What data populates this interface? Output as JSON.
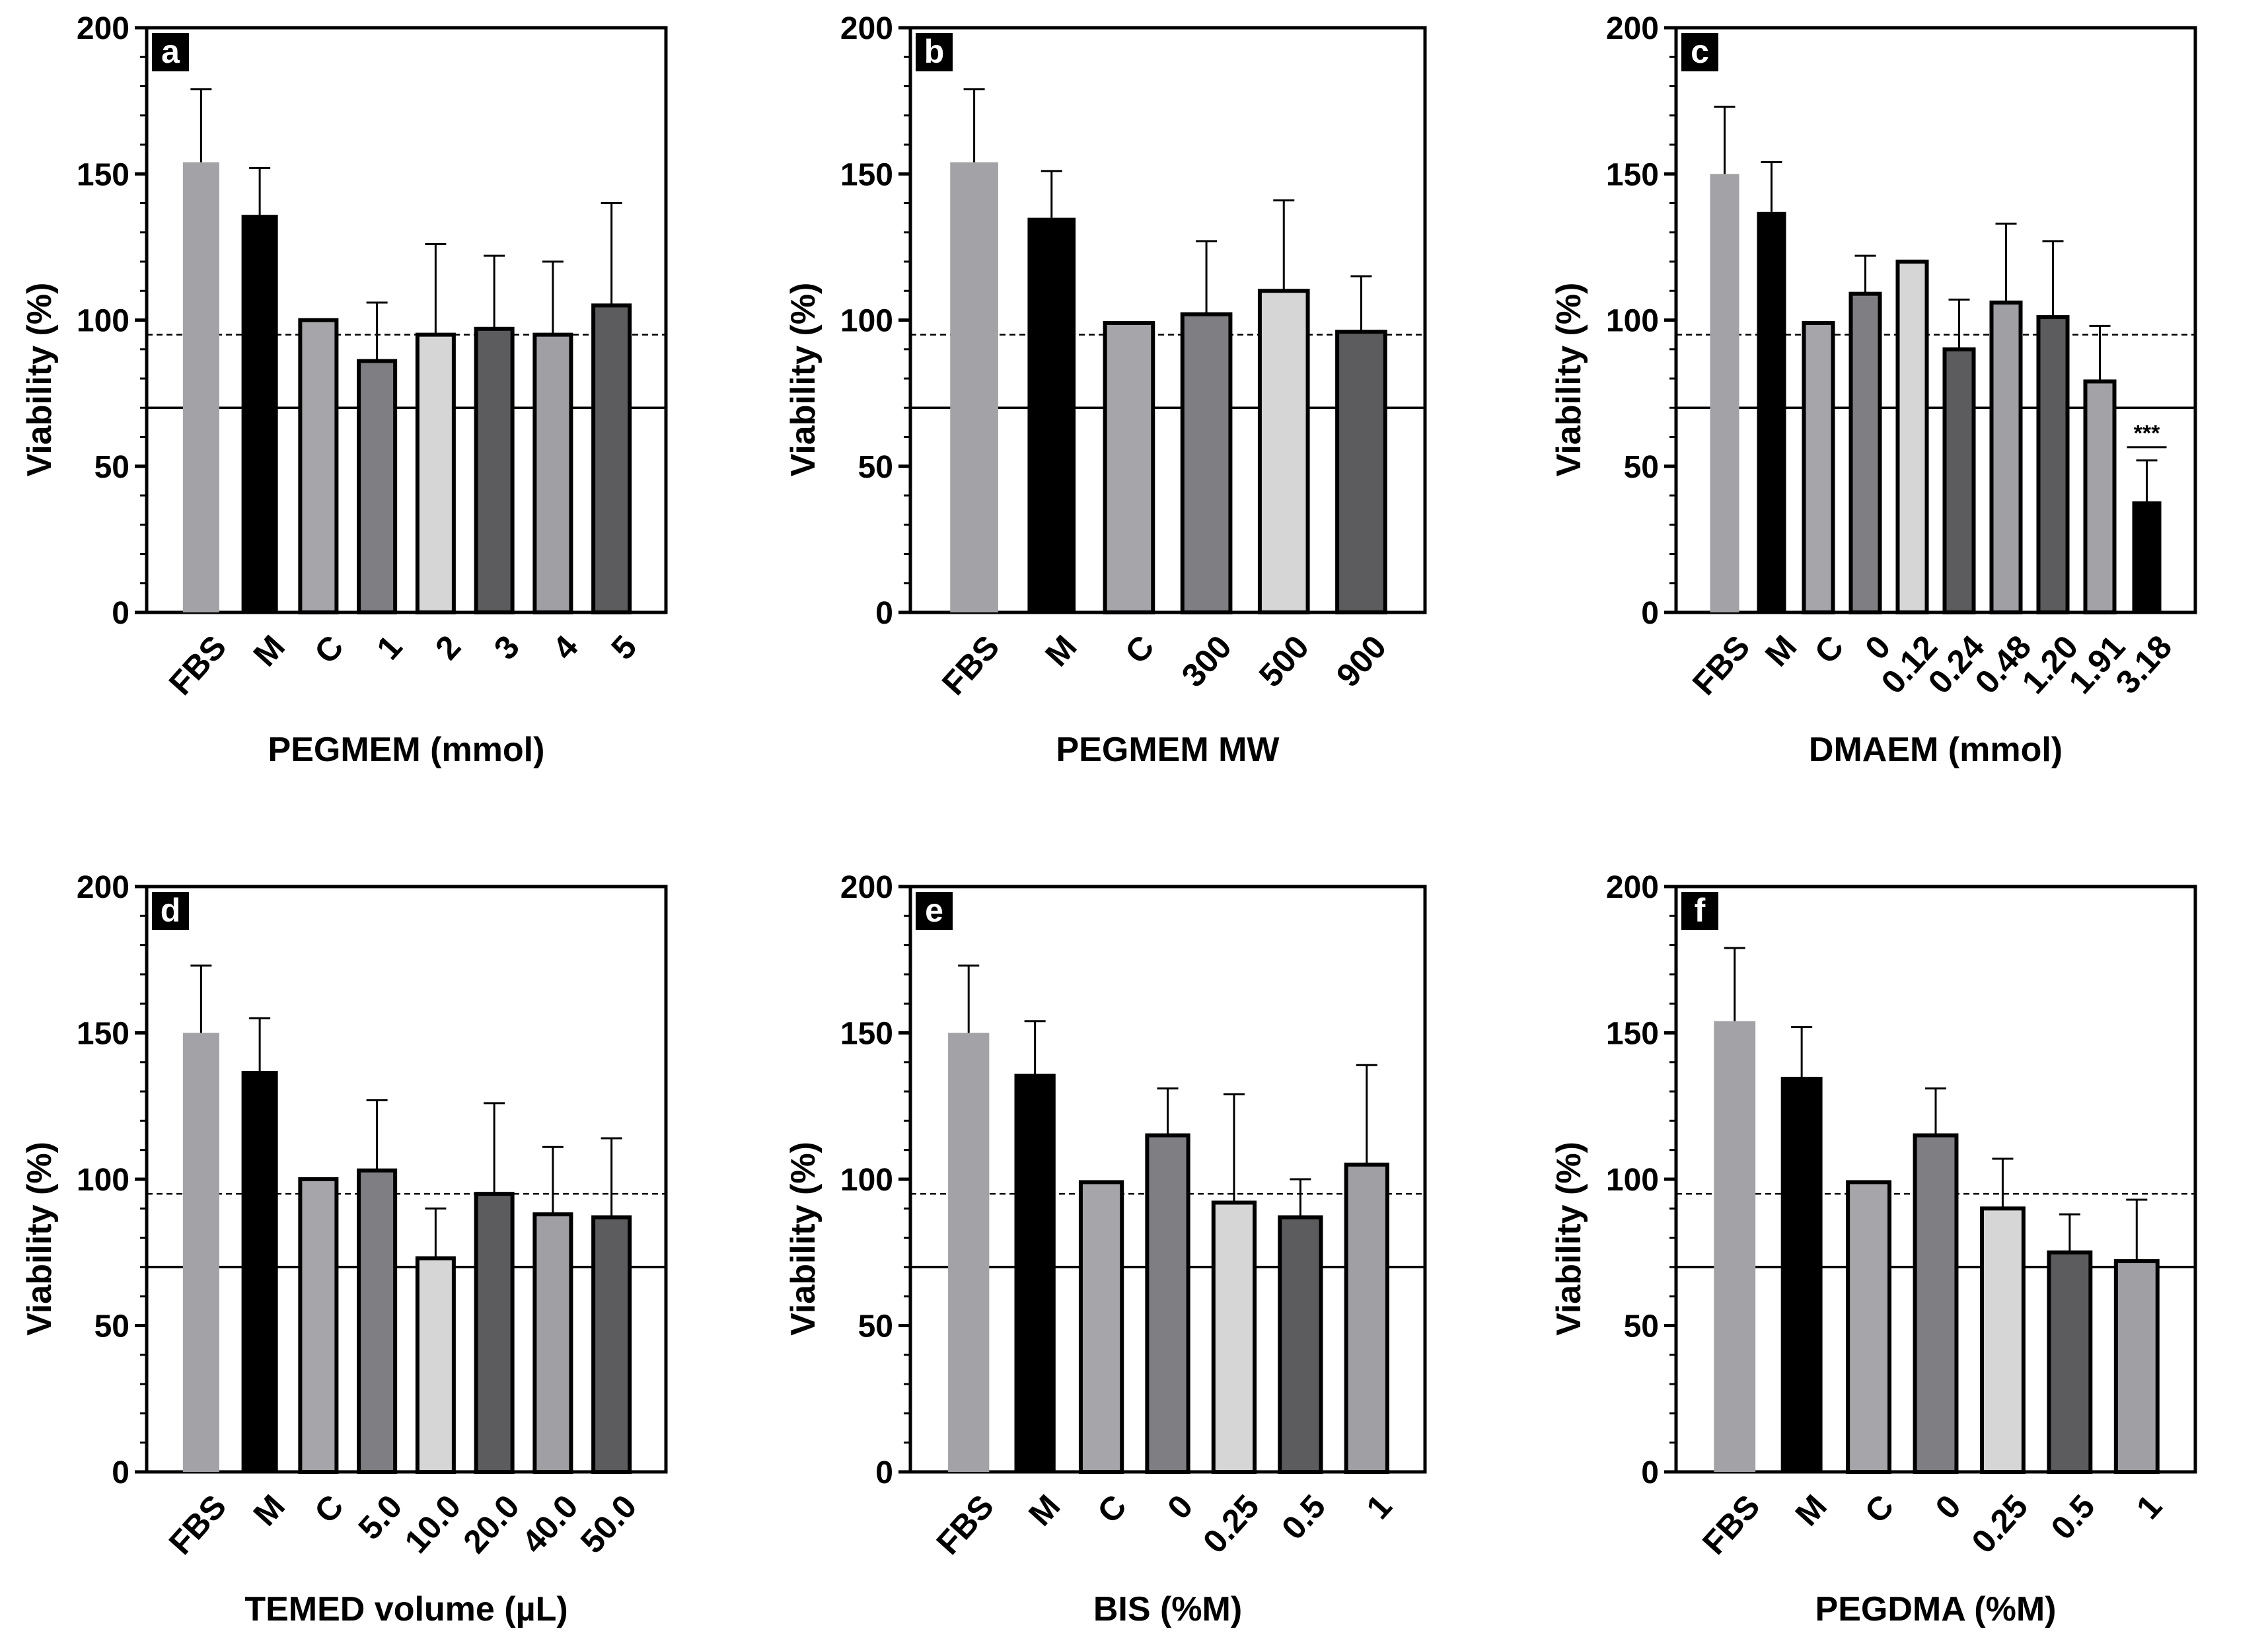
{
  "colors": {
    "fbs": "#a3a3a7",
    "m": "#000000",
    "c": "#a6a6aa",
    "mid": "#7f7f83",
    "light": "#d6d6d6",
    "dark": "#5c5c5e",
    "pale": "#a0a0a4"
  },
  "chart_data": [
    {
      "type": "bar",
      "panel": "a",
      "xlabel": "PEGMEM (mmol)",
      "ylabel": "Viability (%)",
      "ylim": [
        0,
        200
      ],
      "yticks": [
        0,
        50,
        100,
        150,
        200
      ],
      "reference_lines": {
        "dashed": 95,
        "solid": 70
      },
      "categories": [
        "FBS",
        "M",
        "C",
        "1",
        "2",
        "3",
        "4",
        "5"
      ],
      "values": [
        154,
        136,
        100,
        86,
        95,
        97,
        95,
        105
      ],
      "errors": [
        25,
        16,
        0,
        20,
        31,
        25,
        25,
        35
      ],
      "fills": [
        "fbs",
        "m",
        "c",
        "mid",
        "light",
        "dark",
        "pale",
        "dark"
      ],
      "significance": []
    },
    {
      "type": "bar",
      "panel": "b",
      "xlabel": "PEGMEM MW",
      "ylabel": "Viability (%)",
      "ylim": [
        0,
        200
      ],
      "yticks": [
        0,
        50,
        100,
        150,
        200
      ],
      "reference_lines": {
        "dashed": 95,
        "solid": 70
      },
      "categories": [
        "FBS",
        "M",
        "C",
        "300",
        "500",
        "900"
      ],
      "values": [
        154,
        135,
        99,
        102,
        110,
        96
      ],
      "errors": [
        25,
        16,
        0,
        25,
        31,
        19
      ],
      "fills": [
        "fbs",
        "m",
        "c",
        "mid",
        "light",
        "dark"
      ],
      "significance": []
    },
    {
      "type": "bar",
      "panel": "c",
      "xlabel": "DMAEM (mmol)",
      "ylabel": "Viability (%)",
      "ylim": [
        0,
        200
      ],
      "yticks": [
        0,
        50,
        100,
        150,
        200
      ],
      "reference_lines": {
        "dashed": 95,
        "solid": 70
      },
      "categories": [
        "FBS",
        "M",
        "C",
        "0",
        "0.12",
        "0.24",
        "0.48",
        "1.20",
        "1.91",
        "3.18"
      ],
      "values": [
        150,
        137,
        99,
        109,
        120,
        90,
        106,
        101,
        79,
        38
      ],
      "errors": [
        23,
        17,
        0,
        13,
        0,
        17,
        27,
        26,
        19,
        14
      ],
      "fills": [
        "fbs",
        "m",
        "c",
        "mid",
        "light",
        "dark",
        "pale",
        "dark",
        "fbs",
        "m"
      ],
      "significance": [
        {
          "category": "3.18",
          "label": "***"
        }
      ]
    },
    {
      "type": "bar",
      "panel": "d",
      "xlabel": "TEMED volume (µL)",
      "ylabel": "Viability (%)",
      "ylim": [
        0,
        200
      ],
      "yticks": [
        0,
        50,
        100,
        150,
        200
      ],
      "reference_lines": {
        "dashed": 95,
        "solid": 70
      },
      "categories": [
        "FBS",
        "M",
        "C",
        "5.0",
        "10.0",
        "20.0",
        "40.0",
        "50.0"
      ],
      "values": [
        150,
        137,
        100,
        103,
        73,
        95,
        88,
        87
      ],
      "errors": [
        23,
        18,
        0,
        24,
        17,
        31,
        23,
        27
      ],
      "fills": [
        "fbs",
        "m",
        "c",
        "mid",
        "light",
        "dark",
        "pale",
        "dark"
      ],
      "significance": []
    },
    {
      "type": "bar",
      "panel": "e",
      "xlabel": "BIS (%M)",
      "ylabel": "Viability (%)",
      "ylim": [
        0,
        200
      ],
      "yticks": [
        0,
        50,
        100,
        150,
        200
      ],
      "reference_lines": {
        "dashed": 95,
        "solid": 70
      },
      "categories": [
        "FBS",
        "M",
        "C",
        "0",
        "0.25",
        "0.5",
        "1"
      ],
      "values": [
        150,
        136,
        99,
        115,
        92,
        87,
        105
      ],
      "errors": [
        23,
        18,
        0,
        16,
        37,
        13,
        34
      ],
      "fills": [
        "fbs",
        "m",
        "c",
        "mid",
        "light",
        "dark",
        "pale"
      ],
      "significance": []
    },
    {
      "type": "bar",
      "panel": "f",
      "xlabel": "PEGDMA (%M)",
      "ylabel": "Viability (%)",
      "ylim": [
        0,
        200
      ],
      "yticks": [
        0,
        50,
        100,
        150,
        200
      ],
      "reference_lines": {
        "dashed": 95,
        "solid": 70
      },
      "categories": [
        "FBS",
        "M",
        "C",
        "0",
        "0.25",
        "0.5",
        "1"
      ],
      "values": [
        154,
        135,
        99,
        115,
        90,
        75,
        72
      ],
      "errors": [
        25,
        17,
        0,
        16,
        17,
        13,
        21
      ],
      "fills": [
        "fbs",
        "m",
        "c",
        "mid",
        "light",
        "dark",
        "pale"
      ],
      "significance": []
    }
  ]
}
